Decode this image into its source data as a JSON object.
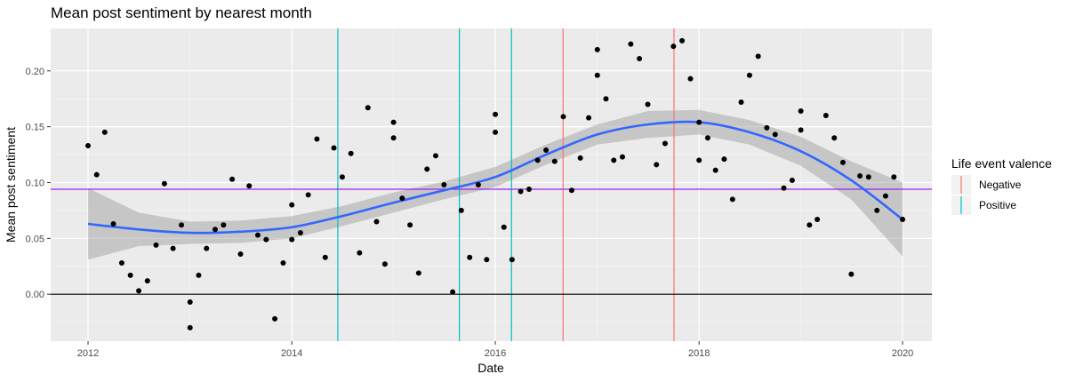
{
  "chart_data": {
    "type": "scatter",
    "title": "Mean post sentiment by nearest month",
    "xlabel": "Date",
    "ylabel": "Mean post sentiment",
    "xlim": [
      "2011-08-20",
      "2020-04-15"
    ],
    "ylim": [
      -0.042,
      0.238
    ],
    "x_ticks": [
      "2012",
      "2014",
      "2016",
      "2018",
      "2020"
    ],
    "y_ticks": [
      "0.00",
      "0.05",
      "0.10",
      "0.15",
      "0.20"
    ],
    "grid": true,
    "legend": {
      "title": "Life event valence",
      "placement": "right",
      "entries": [
        {
          "label": "Negative",
          "color": "#f8766d"
        },
        {
          "label": "Positive",
          "color": "#00bfc4"
        }
      ]
    },
    "reference_lines": {
      "horizontal": [
        {
          "y": 0.0,
          "color": "#000000"
        },
        {
          "y": 0.094,
          "color": "#a020f0"
        }
      ],
      "vertical": [
        {
          "x": "2014-06-15",
          "valence": "Positive"
        },
        {
          "x": "2015-08-25",
          "valence": "Positive"
        },
        {
          "x": "2016-02-28",
          "valence": "Positive"
        },
        {
          "x": "2016-08-31",
          "valence": "Negative"
        },
        {
          "x": "2017-10-03",
          "valence": "Negative"
        }
      ]
    },
    "points": [
      {
        "x": "2012-01-01",
        "y": 0.133
      },
      {
        "x": "2012-02-01",
        "y": 0.107
      },
      {
        "x": "2012-03-01",
        "y": 0.145
      },
      {
        "x": "2012-04-01",
        "y": 0.063
      },
      {
        "x": "2012-05-01",
        "y": 0.028
      },
      {
        "x": "2012-06-01",
        "y": 0.017
      },
      {
        "x": "2012-07-01",
        "y": 0.003
      },
      {
        "x": "2012-08-01",
        "y": 0.012
      },
      {
        "x": "2012-09-01",
        "y": 0.044
      },
      {
        "x": "2012-10-01",
        "y": 0.099
      },
      {
        "x": "2012-11-01",
        "y": 0.041
      },
      {
        "x": "2012-12-01",
        "y": 0.062
      },
      {
        "x": "2013-01-01",
        "y": -0.007
      },
      {
        "x": "2013-01-01",
        "y": -0.03
      },
      {
        "x": "2013-02-01",
        "y": 0.017
      },
      {
        "x": "2013-03-01",
        "y": 0.041
      },
      {
        "x": "2013-04-01",
        "y": 0.058
      },
      {
        "x": "2013-05-01",
        "y": 0.062
      },
      {
        "x": "2013-06-01",
        "y": 0.103
      },
      {
        "x": "2013-07-01",
        "y": 0.036
      },
      {
        "x": "2013-08-01",
        "y": 0.097
      },
      {
        "x": "2013-09-01",
        "y": 0.053
      },
      {
        "x": "2013-10-01",
        "y": 0.049
      },
      {
        "x": "2013-11-01",
        "y": -0.022
      },
      {
        "x": "2013-12-01",
        "y": 0.028
      },
      {
        "x": "2014-01-01",
        "y": 0.08
      },
      {
        "x": "2014-01-01",
        "y": 0.049
      },
      {
        "x": "2014-02-01",
        "y": 0.055
      },
      {
        "x": "2014-03-01",
        "y": 0.089
      },
      {
        "x": "2014-04-01",
        "y": 0.139
      },
      {
        "x": "2014-05-01",
        "y": 0.033
      },
      {
        "x": "2014-06-01",
        "y": 0.131
      },
      {
        "x": "2014-07-01",
        "y": 0.105
      },
      {
        "x": "2014-08-01",
        "y": 0.126
      },
      {
        "x": "2014-09-01",
        "y": 0.037
      },
      {
        "x": "2014-10-01",
        "y": 0.167
      },
      {
        "x": "2014-11-01",
        "y": 0.065
      },
      {
        "x": "2014-12-01",
        "y": 0.027
      },
      {
        "x": "2015-01-01",
        "y": 0.154
      },
      {
        "x": "2015-01-01",
        "y": 0.14
      },
      {
        "x": "2015-02-01",
        "y": 0.086
      },
      {
        "x": "2015-03-01",
        "y": 0.062
      },
      {
        "x": "2015-04-01",
        "y": 0.019
      },
      {
        "x": "2015-05-01",
        "y": 0.112
      },
      {
        "x": "2015-06-01",
        "y": 0.124
      },
      {
        "x": "2015-07-01",
        "y": 0.098
      },
      {
        "x": "2015-08-01",
        "y": 0.002
      },
      {
        "x": "2015-09-01",
        "y": 0.075
      },
      {
        "x": "2015-10-01",
        "y": 0.033
      },
      {
        "x": "2015-11-01",
        "y": 0.098
      },
      {
        "x": "2015-12-01",
        "y": 0.031
      },
      {
        "x": "2016-01-01",
        "y": 0.161
      },
      {
        "x": "2016-01-01",
        "y": 0.145
      },
      {
        "x": "2016-02-01",
        "y": 0.06
      },
      {
        "x": "2016-03-01",
        "y": 0.031
      },
      {
        "x": "2016-04-01",
        "y": 0.092
      },
      {
        "x": "2016-05-01",
        "y": 0.094
      },
      {
        "x": "2016-06-01",
        "y": 0.12
      },
      {
        "x": "2016-07-01",
        "y": 0.129
      },
      {
        "x": "2016-08-01",
        "y": 0.119
      },
      {
        "x": "2016-09-01",
        "y": 0.159
      },
      {
        "x": "2016-10-01",
        "y": 0.093
      },
      {
        "x": "2016-11-01",
        "y": 0.122
      },
      {
        "x": "2016-12-01",
        "y": 0.158
      },
      {
        "x": "2017-01-01",
        "y": 0.219
      },
      {
        "x": "2017-01-01",
        "y": 0.196
      },
      {
        "x": "2017-02-01",
        "y": 0.175
      },
      {
        "x": "2017-03-01",
        "y": 0.12
      },
      {
        "x": "2017-04-01",
        "y": 0.123
      },
      {
        "x": "2017-05-01",
        "y": 0.224
      },
      {
        "x": "2017-06-01",
        "y": 0.211
      },
      {
        "x": "2017-07-01",
        "y": 0.17
      },
      {
        "x": "2017-08-01",
        "y": 0.116
      },
      {
        "x": "2017-09-01",
        "y": 0.135
      },
      {
        "x": "2017-10-01",
        "y": 0.222
      },
      {
        "x": "2017-11-01",
        "y": 0.227
      },
      {
        "x": "2017-12-01",
        "y": 0.193
      },
      {
        "x": "2018-01-01",
        "y": 0.154
      },
      {
        "x": "2018-01-01",
        "y": 0.12
      },
      {
        "x": "2018-02-01",
        "y": 0.14
      },
      {
        "x": "2018-03-01",
        "y": 0.111
      },
      {
        "x": "2018-04-01",
        "y": 0.121
      },
      {
        "x": "2018-05-01",
        "y": 0.085
      },
      {
        "x": "2018-06-01",
        "y": 0.172
      },
      {
        "x": "2018-07-01",
        "y": 0.196
      },
      {
        "x": "2018-08-01",
        "y": 0.213
      },
      {
        "x": "2018-09-01",
        "y": 0.149
      },
      {
        "x": "2018-10-01",
        "y": 0.143
      },
      {
        "x": "2018-11-01",
        "y": 0.095
      },
      {
        "x": "2018-12-01",
        "y": 0.102
      },
      {
        "x": "2019-01-01",
        "y": 0.164
      },
      {
        "x": "2019-01-01",
        "y": 0.147
      },
      {
        "x": "2019-02-01",
        "y": 0.062
      },
      {
        "x": "2019-03-01",
        "y": 0.067
      },
      {
        "x": "2019-04-01",
        "y": 0.16
      },
      {
        "x": "2019-05-01",
        "y": 0.14
      },
      {
        "x": "2019-06-01",
        "y": 0.118
      },
      {
        "x": "2019-07-01",
        "y": 0.018
      },
      {
        "x": "2019-08-01",
        "y": 0.106
      },
      {
        "x": "2019-09-01",
        "y": 0.105
      },
      {
        "x": "2019-10-01",
        "y": 0.075
      },
      {
        "x": "2019-11-01",
        "y": 0.088
      },
      {
        "x": "2019-12-01",
        "y": 0.105
      },
      {
        "x": "2020-01-01",
        "y": 0.067
      }
    ],
    "smooth": {
      "color": "#3366ff",
      "band_color": "#999999",
      "x": [
        "2012-01-01",
        "2012-07-01",
        "2013-01-01",
        "2013-07-01",
        "2014-01-01",
        "2014-07-01",
        "2015-01-01",
        "2015-07-01",
        "2016-01-01",
        "2016-07-01",
        "2017-01-01",
        "2017-07-01",
        "2018-01-01",
        "2018-07-01",
        "2019-01-01",
        "2019-07-01",
        "2020-01-01"
      ],
      "y": [
        0.063,
        0.058,
        0.055,
        0.056,
        0.06,
        0.07,
        0.082,
        0.093,
        0.105,
        0.125,
        0.143,
        0.152,
        0.154,
        0.145,
        0.128,
        0.102,
        0.067
      ],
      "lower": [
        0.031,
        0.043,
        0.045,
        0.046,
        0.05,
        0.061,
        0.073,
        0.085,
        0.096,
        0.116,
        0.134,
        0.14,
        0.143,
        0.134,
        0.115,
        0.085,
        0.034
      ],
      "upper": [
        0.095,
        0.073,
        0.065,
        0.066,
        0.07,
        0.079,
        0.091,
        0.101,
        0.114,
        0.134,
        0.152,
        0.164,
        0.165,
        0.156,
        0.141,
        0.119,
        0.1
      ]
    }
  }
}
